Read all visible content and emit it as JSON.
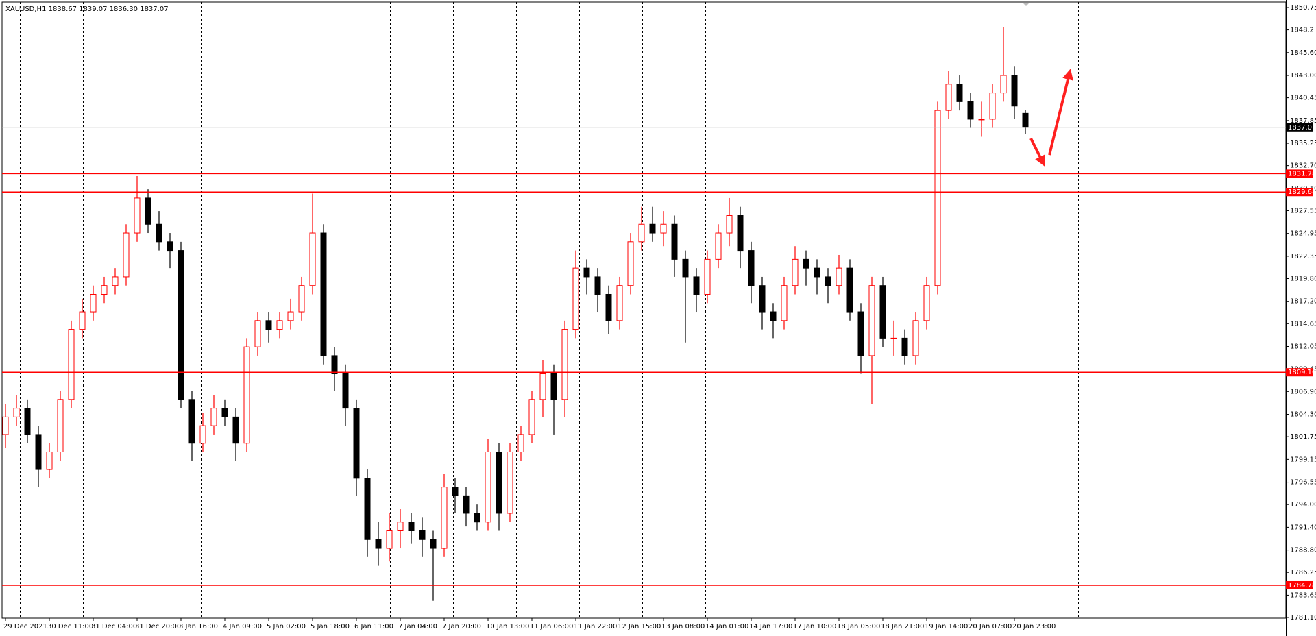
{
  "chart_data": {
    "type": "candlestick",
    "title": "XAUUSD,H1  1838.67 1839.07 1836.30 1837.07",
    "categories": [
      "29 Dec 2021",
      null,
      null,
      null,
      "30 Dec 11:00",
      null,
      null,
      null,
      "31 Dec 04:00",
      null,
      null,
      null,
      "31 Dec 20:00",
      null,
      null,
      null,
      "3 Jan 16:00",
      null,
      null,
      null,
      "4 Jan 09:00",
      null,
      null,
      null,
      "5 Jan 02:00",
      null,
      null,
      null,
      "5 Jan 18:00",
      null,
      null,
      null,
      "6 Jan 11:00",
      null,
      null,
      null,
      "7 Jan 04:00",
      null,
      null,
      null,
      "7 Jan 20:00",
      null,
      null,
      null,
      "10 Jan 13:00",
      null,
      null,
      null,
      "11 Jan 06:00",
      null,
      null,
      null,
      "11 Jan 22:00",
      null,
      null,
      null,
      "12 Jan 15:00",
      null,
      null,
      null,
      "13 Jan 08:00",
      null,
      null,
      null,
      "14 Jan 01:00",
      null,
      null,
      null,
      "14 Jan 17:00",
      null,
      null,
      null,
      "17 Jan 10:00",
      null,
      null,
      null,
      "18 Jan 05:00",
      null,
      null,
      null,
      "18 Jan 21:00",
      null,
      null,
      null,
      "19 Jan 14:00",
      null,
      null,
      null,
      "20 Jan 07:00",
      null,
      null,
      null,
      "20 Jan 23:00",
      null
    ],
    "open": [
      1802,
      1804,
      1805,
      1802,
      1798,
      1800,
      1806,
      1814,
      1816,
      1818,
      1819,
      1820,
      1825,
      1829,
      1826,
      1824,
      1823,
      1806,
      1801,
      1803,
      1805,
      1804,
      1801,
      1812,
      1815,
      1814,
      1815,
      1816,
      1819,
      1825,
      1811,
      1809,
      1805,
      1797,
      1790,
      1789,
      1791,
      1792,
      1791,
      1790,
      1789,
      1796,
      1795,
      1793,
      1792,
      1800,
      1793,
      1800,
      1802,
      1806,
      1809,
      1806,
      1814,
      1821,
      1820,
      1818,
      1815,
      1819,
      1824,
      1826,
      1825,
      1826,
      1822,
      1820,
      1818,
      1822,
      1825,
      1827,
      1823,
      1819,
      1816,
      1815,
      1819,
      1822,
      1821,
      1820,
      1819,
      1821,
      1816,
      1811,
      1819,
      1813,
      1813,
      1811,
      1815,
      1819,
      1839,
      1842,
      1840,
      1838,
      1838,
      1841,
      1843,
      1838.67
    ],
    "high": [
      1805.5,
      1806.5,
      1806,
      1803,
      1801,
      1807,
      1815,
      1817.5,
      1819,
      1820,
      1821,
      1826,
      1831.5,
      1830,
      1827.5,
      1825,
      1824,
      1807,
      1804.5,
      1806.5,
      1806,
      1805,
      1813,
      1816,
      1816,
      1816,
      1817.5,
      1820,
      1829.5,
      1826,
      1812,
      1810,
      1806,
      1798,
      1792,
      1793,
      1793.5,
      1793,
      1792.5,
      1791,
      1797.5,
      1797,
      1796,
      1794,
      1801.5,
      1801,
      1801,
      1803,
      1807,
      1810.5,
      1810,
      1815,
      1823,
      1822,
      1821,
      1819,
      1820,
      1825,
      1828,
      1828,
      1827.5,
      1827,
      1823,
      1821,
      1823,
      1826,
      1829,
      1828,
      1824,
      1820,
      1817,
      1820,
      1823.5,
      1823,
      1822,
      1821,
      1822.5,
      1822,
      1817,
      1820,
      1820,
      1815,
      1814,
      1816,
      1820,
      1840,
      1843.5,
      1843,
      1841,
      1840,
      1842,
      1848.5,
      1844,
      1839.07
    ],
    "low": [
      1800.5,
      1803,
      1801,
      1796,
      1797,
      1799,
      1805,
      1813,
      1815,
      1817,
      1818,
      1819,
      1824,
      1825,
      1823,
      1821,
      1805,
      1799,
      1800,
      1802,
      1803,
      1799,
      1800,
      1811,
      1812.5,
      1813,
      1814,
      1815,
      1818,
      1810,
      1807,
      1803,
      1795,
      1788,
      1787,
      1787.5,
      1789,
      1789.5,
      1788,
      1783,
      1788,
      1793,
      1791.5,
      1791,
      1791,
      1791,
      1792,
      1799,
      1801,
      1804,
      1802,
      1804,
      1813,
      1818,
      1816,
      1813.5,
      1814,
      1818,
      1823,
      1824,
      1823.5,
      1820,
      1812.5,
      1816,
      1817,
      1821,
      1823.5,
      1821,
      1817,
      1814,
      1813,
      1814,
      1818,
      1819,
      1818,
      1817,
      1818,
      1815,
      1809,
      1805.5,
      1812,
      1811,
      1810,
      1810,
      1814,
      1818,
      1838,
      1839,
      1837,
      1836,
      1837,
      1840,
      1838,
      1836.3
    ],
    "close": [
      1804,
      1805,
      1802,
      1798,
      1800,
      1806,
      1814,
      1816,
      1818,
      1819,
      1820,
      1825,
      1829,
      1826,
      1824,
      1823,
      1806,
      1801,
      1803,
      1805,
      1804,
      1801,
      1812,
      1815,
      1814,
      1815,
      1816,
      1819,
      1825,
      1811,
      1809,
      1805,
      1797,
      1790,
      1789,
      1791,
      1792,
      1791,
      1790,
      1789,
      1796,
      1795,
      1793,
      1792,
      1800,
      1793,
      1800,
      1802,
      1806,
      1809,
      1806,
      1814,
      1821,
      1820,
      1818,
      1815,
      1819,
      1824,
      1826,
      1825,
      1826,
      1822,
      1820,
      1818,
      1822,
      1825,
      1827,
      1823,
      1819,
      1816,
      1815,
      1819,
      1822,
      1821,
      1820,
      1819,
      1821,
      1816,
      1811,
      1819,
      1813,
      1813,
      1811,
      1815,
      1819,
      1839,
      1842,
      1840,
      1838,
      1838,
      1841,
      1843,
      1839.5,
      1837.07
    ],
    "up_color": "#ff0000",
    "down_color": "#000000",
    "ylim": [
      1781.1,
      1850.75
    ],
    "yticks": [
      1850.75,
      1848.2,
      {
        "value": 1845.6,
        "label": "1845.60"
      },
      {
        "value": 1843,
        "label": "1843.00"
      },
      1840.45,
      1837.85,
      1835.25,
      {
        "value": 1832.7,
        "label": "1832.70"
      },
      {
        "value": 1830.1,
        "label": "1830.10"
      },
      1827.55,
      1824.95,
      1822.35,
      {
        "value": 1819.8,
        "label": "1819.80"
      },
      {
        "value": 1817.2,
        "label": "1817.20"
      },
      1814.65,
      1812.05,
      1809.45,
      {
        "value": 1806.9,
        "label": "1806.90"
      },
      {
        "value": 1804.3,
        "label": "1804.30"
      },
      1801.75,
      1799.15,
      1796.55,
      {
        "value": 1794,
        "label": "1794.00"
      },
      {
        "value": 1791.4,
        "label": "1791.40"
      },
      {
        "value": 1788.8,
        "label": "1788.80"
      },
      1786.25,
      1783.65,
      {
        "value": 1781.1,
        "label": "1781.10"
      }
    ],
    "levels": [
      1831.78,
      1829.68,
      {
        "value": 1809.1,
        "label": "1809.10"
      },
      1784.78
    ],
    "level_color": "#ff0000",
    "last_price": 1837.07,
    "last_price_color": "#c0c0c0"
  }
}
